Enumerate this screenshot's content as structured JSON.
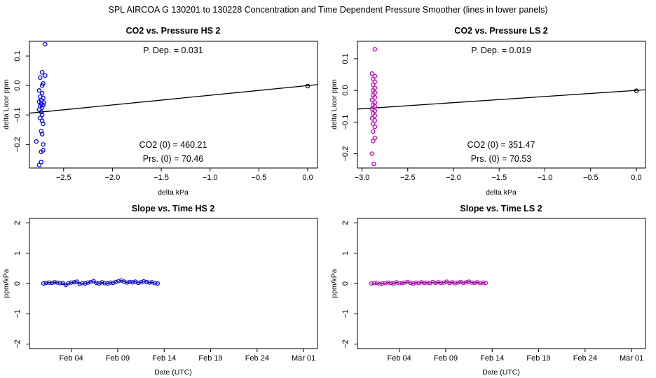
{
  "suptitle": "SPL    AIRCOA G    130201 to 130228    Concentration and Time Dependent Pressure Smoother (lines in lower panels)",
  "chart_data": [
    {
      "id": "hs_pressure",
      "type": "scatter",
      "title": "CO2 vs. Pressure HS 2",
      "xlabel": "delta kPa",
      "ylabel": "delta Licor ppm",
      "xlim": [
        -2.85,
        0.1
      ],
      "ylim": [
        -0.28,
        0.15
      ],
      "xticks": [
        -2.5,
        -2.0,
        -1.5,
        -1.0,
        -0.5,
        0.0
      ],
      "xtick_labels": [
        "−2.5",
        "−2.0",
        "−1.5",
        "−1.0",
        "−0.5",
        "0.0"
      ],
      "yticks": [
        -0.2,
        -0.1,
        0.0,
        0.1
      ],
      "ytick_labels": [
        "−0.2",
        "−0.1",
        "0.0",
        "0.1"
      ],
      "color": "#0000ee",
      "fit_line": {
        "x": [
          -2.85,
          0.1
        ],
        "y": [
          -0.094,
          0.003
        ]
      },
      "annotations": {
        "p_dep": "P. Dep. =  0.031",
        "co2_0": "CO2 (0) =  460.21",
        "prs_0": "Prs. (0) =  70.46"
      },
      "points": [
        {
          "x": -2.69,
          "y": 0.14
        },
        {
          "x": -2.72,
          "y": 0.045
        },
        {
          "x": -2.69,
          "y": 0.034
        },
        {
          "x": -2.74,
          "y": 0.027
        },
        {
          "x": -2.71,
          "y": 0.007
        },
        {
          "x": -2.72,
          "y": 0.0
        },
        {
          "x": -2.75,
          "y": -0.017
        },
        {
          "x": -2.72,
          "y": -0.026
        },
        {
          "x": -2.74,
          "y": -0.038
        },
        {
          "x": -2.71,
          "y": -0.042
        },
        {
          "x": -2.73,
          "y": -0.05
        },
        {
          "x": -2.75,
          "y": -0.055
        },
        {
          "x": -2.7,
          "y": -0.058
        },
        {
          "x": -2.73,
          "y": -0.062
        },
        {
          "x": -2.71,
          "y": -0.066
        },
        {
          "x": -2.74,
          "y": -0.07
        },
        {
          "x": -2.72,
          "y": -0.075
        },
        {
          "x": -2.75,
          "y": -0.082
        },
        {
          "x": -2.73,
          "y": -0.09
        },
        {
          "x": -2.72,
          "y": -0.1
        },
        {
          "x": -2.74,
          "y": -0.11
        },
        {
          "x": -2.72,
          "y": -0.12
        },
        {
          "x": -2.71,
          "y": -0.13
        },
        {
          "x": -2.73,
          "y": -0.155
        },
        {
          "x": -2.72,
          "y": -0.165
        },
        {
          "x": -2.78,
          "y": -0.19
        },
        {
          "x": -2.71,
          "y": -0.2
        },
        {
          "x": -2.73,
          "y": -0.225
        },
        {
          "x": -2.71,
          "y": -0.22
        },
        {
          "x": -2.73,
          "y": -0.26
        },
        {
          "x": -2.75,
          "y": -0.27
        },
        {
          "x": 0.0,
          "y": -0.002
        }
      ]
    },
    {
      "id": "ls_pressure",
      "type": "scatter",
      "title": "CO2 vs. Pressure LS 2",
      "xlabel": "delta kPa",
      "ylabel": "delta Licor ppm",
      "xlim": [
        -3.05,
        0.1
      ],
      "ylim": [
        -0.245,
        0.155
      ],
      "xticks": [
        -3.0,
        -2.5,
        -2.0,
        -1.5,
        -1.0,
        -0.5,
        0.0
      ],
      "xtick_labels": [
        "−3.0",
        "−2.5",
        "−2.0",
        "−1.5",
        "−1.0",
        "−0.5",
        "0.0"
      ],
      "yticks": [
        -0.2,
        -0.1,
        0.0,
        0.1
      ],
      "ytick_labels": [
        "−0.2",
        "−0.1",
        "0.0",
        "0.1"
      ],
      "color": "#c000c0",
      "fit_line": {
        "x": [
          -3.05,
          0.1
        ],
        "y": [
          -0.059,
          0.002
        ]
      },
      "annotations": {
        "p_dep": "P. Dep. =  0.019",
        "co2_0": "CO2 (0) =  351.47",
        "prs_0": "Prs. (0) =  70.53"
      },
      "points": [
        {
          "x": -2.86,
          "y": 0.13
        },
        {
          "x": -2.89,
          "y": 0.053
        },
        {
          "x": -2.86,
          "y": 0.045
        },
        {
          "x": -2.88,
          "y": 0.036
        },
        {
          "x": -2.86,
          "y": 0.027
        },
        {
          "x": -2.88,
          "y": 0.018
        },
        {
          "x": -2.86,
          "y": 0.008
        },
        {
          "x": -2.88,
          "y": 0.0
        },
        {
          "x": -2.86,
          "y": -0.007
        },
        {
          "x": -2.88,
          "y": -0.015
        },
        {
          "x": -2.86,
          "y": -0.022
        },
        {
          "x": -2.89,
          "y": -0.03
        },
        {
          "x": -2.86,
          "y": -0.038
        },
        {
          "x": -2.88,
          "y": -0.045
        },
        {
          "x": -2.86,
          "y": -0.05
        },
        {
          "x": -2.89,
          "y": -0.058
        },
        {
          "x": -2.86,
          "y": -0.065
        },
        {
          "x": -2.88,
          "y": -0.072
        },
        {
          "x": -2.86,
          "y": -0.08
        },
        {
          "x": -2.89,
          "y": -0.088
        },
        {
          "x": -2.86,
          "y": -0.095
        },
        {
          "x": -2.88,
          "y": -0.105
        },
        {
          "x": -2.86,
          "y": -0.115
        },
        {
          "x": -2.88,
          "y": -0.13
        },
        {
          "x": -2.86,
          "y": -0.15
        },
        {
          "x": -2.88,
          "y": -0.16
        },
        {
          "x": -2.89,
          "y": -0.2
        },
        {
          "x": -2.87,
          "y": -0.232
        },
        {
          "x": 0.0,
          "y": -0.001
        }
      ]
    },
    {
      "id": "hs_time",
      "type": "line",
      "title": "Slope vs. Time HS 2",
      "xlabel": "Date (UTC)",
      "ylabel": "ppm/kPa",
      "xlim": [
        -1.5,
        29.5
      ],
      "ylim": [
        -2.15,
        2.15
      ],
      "xticks": [
        3,
        8,
        13,
        18,
        23,
        28
      ],
      "xtick_labels": [
        "Feb 04",
        "Feb 09",
        "Feb 14",
        "Feb 19",
        "Feb 24",
        "Mar 01"
      ],
      "yticks": [
        -2,
        -1,
        0,
        1,
        2
      ],
      "ytick_labels": [
        "−2",
        "−1",
        "0",
        "1",
        "2"
      ],
      "color": "#0000ee",
      "x": [
        0.0,
        0.3,
        0.6,
        0.9,
        1.2,
        1.5,
        1.8,
        2.1,
        2.4,
        2.7,
        3.0,
        3.3,
        3.6,
        3.9,
        4.2,
        4.5,
        4.8,
        5.1,
        5.4,
        5.7,
        6.0,
        6.3,
        6.6,
        6.9,
        7.2,
        7.5,
        7.8,
        8.1,
        8.4,
        8.7,
        9.0,
        9.3,
        9.6,
        9.9,
        10.2,
        10.5,
        10.8,
        11.1,
        11.4,
        11.7,
        12.0,
        12.3
      ],
      "y": [
        0.0,
        0.02,
        0.03,
        0.02,
        0.04,
        0.03,
        0.01,
        0.02,
        -0.05,
        0.01,
        0.03,
        0.04,
        0.06,
        -0.02,
        0.01,
        0.0,
        0.03,
        0.05,
        0.08,
        0.02,
        0.0,
        0.04,
        0.01,
        0.0,
        0.03,
        0.02,
        0.05,
        0.08,
        0.1,
        0.06,
        0.03,
        0.05,
        0.04,
        0.06,
        0.02,
        0.04,
        0.07,
        0.05,
        0.03,
        0.04,
        0.01,
        0.0
      ]
    },
    {
      "id": "ls_time",
      "type": "line",
      "title": "Slope vs. Time LS 2",
      "xlabel": "Date (UTC)",
      "ylabel": "ppm/kPa",
      "xlim": [
        -1.5,
        29.5
      ],
      "ylim": [
        -2.15,
        2.15
      ],
      "xticks": [
        3,
        8,
        13,
        18,
        23,
        28
      ],
      "xtick_labels": [
        "Feb 04",
        "Feb 09",
        "Feb 14",
        "Feb 19",
        "Feb 24",
        "Mar 01"
      ],
      "yticks": [
        -2,
        -1,
        0,
        1,
        2
      ],
      "ytick_labels": [
        "−2",
        "−1",
        "0",
        "1",
        "2"
      ],
      "color": "#c000c0",
      "x": [
        0.0,
        0.3,
        0.6,
        0.9,
        1.2,
        1.5,
        1.8,
        2.1,
        2.4,
        2.7,
        3.0,
        3.3,
        3.6,
        3.9,
        4.2,
        4.5,
        4.8,
        5.1,
        5.4,
        5.7,
        6.0,
        6.3,
        6.6,
        6.9,
        7.2,
        7.5,
        7.8,
        8.1,
        8.4,
        8.7,
        9.0,
        9.3,
        9.6,
        9.9,
        10.2,
        10.5,
        10.8,
        11.1,
        11.4,
        11.7,
        12.0,
        12.3
      ],
      "y": [
        0.0,
        0.01,
        0.02,
        -0.02,
        0.0,
        0.01,
        0.03,
        0.02,
        0.0,
        0.04,
        0.01,
        0.02,
        0.03,
        0.05,
        0.02,
        0.0,
        0.03,
        0.01,
        0.04,
        0.02,
        0.03,
        0.01,
        0.05,
        0.02,
        0.04,
        0.02,
        0.03,
        0.06,
        0.02,
        0.04,
        0.01,
        0.03,
        0.05,
        0.02,
        0.04,
        0.06,
        0.03,
        0.02,
        0.04,
        0.01,
        0.03,
        0.02
      ]
    }
  ]
}
